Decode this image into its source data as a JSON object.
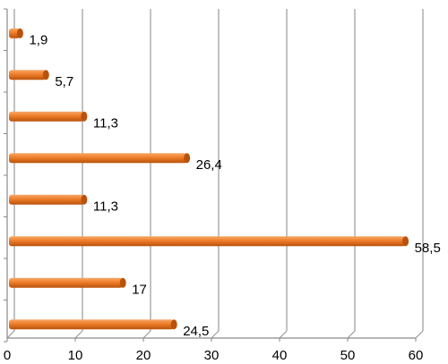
{
  "chart_data": {
    "type": "bar",
    "orientation": "horizontal",
    "values": [
      1.9,
      5.7,
      11.3,
      26.4,
      11.3,
      58.5,
      17,
      24.5
    ],
    "data_labels": [
      "1,9",
      "5,7",
      "11,3",
      "26,4",
      "11,3",
      "58,5",
      "17",
      "24,5"
    ],
    "x_ticks": [
      "0",
      "10",
      "20",
      "30",
      "40",
      "50",
      "60"
    ],
    "xlim": [
      0,
      60
    ],
    "grid": true,
    "legend": "none",
    "colors": {
      "bar": "#ee7d2a",
      "bar_dark": "#b9520c",
      "grid": "#9a9a9a",
      "axis": "#8a8a8a"
    }
  }
}
